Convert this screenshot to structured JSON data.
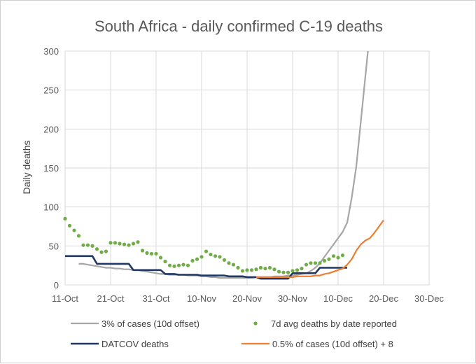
{
  "chart_data": {
    "type": "line",
    "title": "South Africa - daily confirmed C-19 deaths",
    "xlabel": "",
    "ylabel": "Daily deaths",
    "x_start": "11-Oct",
    "x_tick_labels": [
      "11-Oct",
      "21-Oct",
      "31-Oct",
      "10-Nov",
      "20-Nov",
      "30-Nov",
      "10-Dec",
      "20-Dec",
      "30-Dec"
    ],
    "x_tick_days": [
      0,
      10,
      20,
      30,
      40,
      50,
      60,
      70,
      80
    ],
    "xlim": [
      0,
      80
    ],
    "ylim": [
      0,
      300
    ],
    "y_ticks": [
      0,
      50,
      100,
      150,
      200,
      250,
      300
    ],
    "grid": true,
    "legend_position": "bottom",
    "series": [
      {
        "name": "3% of cases (10d offset)",
        "style": "line",
        "color": "#a6a6a6",
        "x": [
          3,
          4,
          5,
          6,
          7,
          8,
          9,
          10,
          11,
          12,
          13,
          14,
          15,
          16,
          17,
          18,
          19,
          20,
          21,
          22,
          23,
          24,
          25,
          26,
          27,
          28,
          29,
          30,
          31,
          32,
          33,
          34,
          35,
          36,
          37,
          38,
          39,
          40,
          41,
          42,
          43,
          44,
          45,
          46,
          47,
          48,
          49,
          50,
          51,
          52,
          53,
          54,
          55,
          56,
          57,
          58,
          59,
          60,
          61,
          62,
          63,
          64,
          65
        ],
        "y": [
          27,
          27,
          26,
          25,
          24,
          23,
          22,
          22,
          21,
          21,
          20,
          20,
          19,
          19,
          18,
          17,
          16,
          15,
          14,
          14,
          13,
          13,
          13,
          13,
          12,
          12,
          12,
          11,
          11,
          10,
          10,
          9,
          9,
          9,
          9,
          9,
          9,
          9,
          9,
          10,
          10,
          10,
          10,
          11,
          11,
          11,
          12,
          12,
          13,
          14,
          15,
          18,
          22,
          28,
          36,
          44,
          52,
          60,
          68,
          80,
          112,
          152,
          210
        ]
      },
      {
        "name": "7d avg deaths by date reported",
        "style": "markers",
        "color": "#70ad47",
        "x": [
          0,
          1,
          2,
          3,
          4,
          5,
          6,
          7,
          8,
          9,
          10,
          11,
          12,
          13,
          14,
          15,
          16,
          17,
          18,
          19,
          20,
          21,
          22,
          23,
          24,
          25,
          26,
          27,
          28,
          29,
          30,
          31,
          32,
          33,
          34,
          35,
          36,
          37,
          38,
          39,
          40,
          41,
          42,
          43,
          44,
          45,
          46,
          47,
          48,
          49,
          50,
          51,
          52,
          53,
          54,
          55,
          56,
          57,
          58,
          59,
          60,
          61
        ],
        "y": [
          85,
          76,
          70,
          63,
          51,
          51,
          50,
          46,
          42,
          43,
          54,
          54,
          53,
          52,
          51,
          53,
          55,
          44,
          41,
          40,
          40,
          35,
          30,
          25,
          24,
          25,
          26,
          25,
          31,
          33,
          36,
          43,
          39,
          37,
          36,
          32,
          28,
          26,
          22,
          18,
          19,
          19,
          20,
          22,
          21,
          22,
          20,
          17,
          16,
          16,
          18,
          19,
          21,
          26,
          28,
          28,
          28,
          31,
          33,
          37,
          35,
          38
        ]
      },
      {
        "name": "DATCOV deaths",
        "style": "line",
        "color": "#1f3864",
        "x": [
          0,
          1,
          2,
          3,
          4,
          5,
          6,
          7,
          8,
          9,
          10,
          11,
          12,
          13,
          14,
          15,
          16,
          17,
          18,
          19,
          20,
          21,
          22,
          23,
          24,
          25,
          26,
          27,
          28,
          29,
          30,
          31,
          32,
          33,
          34,
          35,
          36,
          37,
          38,
          39,
          40,
          41,
          42,
          43,
          44,
          45,
          46,
          47,
          48,
          49,
          50,
          51,
          52,
          53,
          54,
          55,
          56,
          57,
          58,
          59,
          60,
          61,
          62
        ],
        "y": [
          37,
          37,
          37,
          37,
          37,
          37,
          37,
          27,
          27,
          27,
          27,
          27,
          27,
          27,
          27,
          19,
          19,
          19,
          19,
          19,
          19,
          19,
          14,
          14,
          14,
          13,
          13,
          13,
          13,
          13,
          12,
          12,
          12,
          12,
          12,
          12,
          11,
          11,
          11,
          11,
          10,
          10,
          10,
          8,
          8,
          8,
          8,
          8,
          8,
          8,
          15,
          15,
          15,
          15,
          15,
          15,
          22,
          22,
          22,
          22,
          22,
          22,
          22
        ]
      },
      {
        "name": "0.5% of cases (10d offset) + 8",
        "style": "line",
        "color": "#ed7d31",
        "x": [
          42,
          43,
          44,
          45,
          46,
          47,
          48,
          49,
          50,
          51,
          52,
          53,
          54,
          55,
          56,
          57,
          58,
          59,
          60,
          61,
          62,
          63,
          64,
          65,
          66,
          67,
          68,
          69,
          70
        ],
        "y": [
          10,
          10,
          10,
          10,
          10,
          10,
          10,
          10,
          10,
          11,
          11,
          11,
          11,
          12,
          12,
          14,
          15,
          17,
          19,
          21,
          26,
          33,
          44,
          52,
          57,
          60,
          67,
          75,
          83
        ]
      }
    ]
  }
}
